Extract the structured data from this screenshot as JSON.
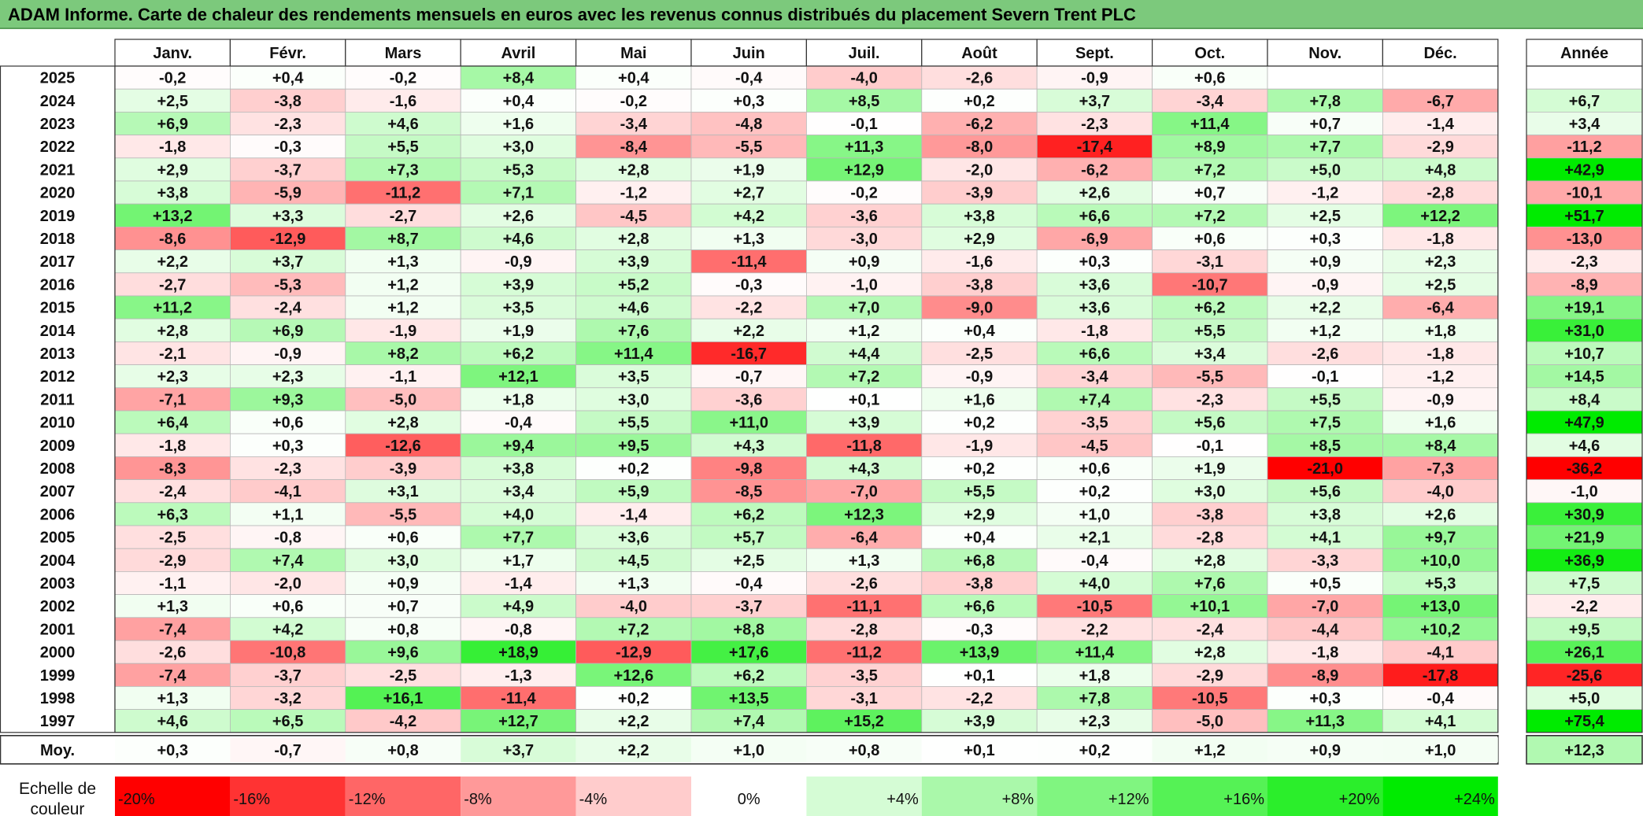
{
  "title": "ADAM Informe. Carte de chaleur des rendements mensuels en euros avec les revenus connus distribués du placement Severn Trent PLC",
  "colors": {
    "title_bg": "#7cc97c",
    "negative": "#ff0000",
    "neutral": "#ffffff",
    "positive": "#00ee00"
  },
  "chart_data": {
    "type": "heatmap",
    "months": [
      "Janv.",
      "Févr.",
      "Mars",
      "Avril",
      "Mai",
      "Juin",
      "Juil.",
      "Août",
      "Sept.",
      "Oct.",
      "Nov.",
      "Déc."
    ],
    "year_header": "Année",
    "rows": [
      {
        "year": "2025",
        "values": [
          "-0,2",
          "+0,4",
          "-0,2",
          "+8,4",
          "+0,4",
          "-0,4",
          "-4,0",
          "-2,6",
          "-0,9",
          "+0,6",
          "",
          ""
        ],
        "annual": ""
      },
      {
        "year": "2024",
        "values": [
          "+2,5",
          "-3,8",
          "-1,6",
          "+0,4",
          "-0,2",
          "+0,3",
          "+8,5",
          "+0,2",
          "+3,7",
          "-3,4",
          "+7,8",
          "-6,7"
        ],
        "annual": "+6,7"
      },
      {
        "year": "2023",
        "values": [
          "+6,9",
          "-2,3",
          "+4,6",
          "+1,6",
          "-3,4",
          "-4,8",
          "-0,1",
          "-6,2",
          "-2,3",
          "+11,4",
          "+0,7",
          "-1,4"
        ],
        "annual": "+3,4"
      },
      {
        "year": "2022",
        "values": [
          "-1,8",
          "-0,3",
          "+5,5",
          "+3,0",
          "-8,4",
          "-5,5",
          "+11,3",
          "-8,0",
          "-17,4",
          "+8,9",
          "+7,7",
          "-2,9"
        ],
        "annual": "-11,2"
      },
      {
        "year": "2021",
        "values": [
          "+2,9",
          "-3,7",
          "+7,3",
          "+5,3",
          "+2,8",
          "+1,9",
          "+12,9",
          "-2,0",
          "-6,2",
          "+7,2",
          "+5,0",
          "+4,8"
        ],
        "annual": "+42,9"
      },
      {
        "year": "2020",
        "values": [
          "+3,8",
          "-5,9",
          "-11,2",
          "+7,1",
          "-1,2",
          "+2,7",
          "-0,2",
          "-3,9",
          "+2,6",
          "+0,7",
          "-1,2",
          "-2,8"
        ],
        "annual": "-10,1"
      },
      {
        "year": "2019",
        "values": [
          "+13,2",
          "+3,3",
          "-2,7",
          "+2,6",
          "-4,5",
          "+4,2",
          "-3,6",
          "+3,8",
          "+6,6",
          "+7,2",
          "+2,5",
          "+12,2"
        ],
        "annual": "+51,7"
      },
      {
        "year": "2018",
        "values": [
          "-8,6",
          "-12,9",
          "+8,7",
          "+4,6",
          "+2,8",
          "+1,3",
          "-3,0",
          "+2,9",
          "-6,9",
          "+0,6",
          "+0,3",
          "-1,8"
        ],
        "annual": "-13,0"
      },
      {
        "year": "2017",
        "values": [
          "+2,2",
          "+3,7",
          "+1,3",
          "-0,9",
          "+3,9",
          "-11,4",
          "+0,9",
          "-1,6",
          "+0,3",
          "-3,1",
          "+0,9",
          "+2,3"
        ],
        "annual": "-2,3"
      },
      {
        "year": "2016",
        "values": [
          "-2,7",
          "-5,3",
          "+1,2",
          "+3,9",
          "+5,2",
          "-0,3",
          "-1,0",
          "-3,8",
          "+3,6",
          "-10,7",
          "-0,9",
          "+2,5"
        ],
        "annual": "-8,9"
      },
      {
        "year": "2015",
        "values": [
          "+11,2",
          "-2,4",
          "+1,2",
          "+3,5",
          "+4,6",
          "-2,2",
          "+7,0",
          "-9,0",
          "+3,6",
          "+6,2",
          "+2,2",
          "-6,4"
        ],
        "annual": "+19,1"
      },
      {
        "year": "2014",
        "values": [
          "+2,8",
          "+6,9",
          "-1,9",
          "+1,9",
          "+7,6",
          "+2,2",
          "+1,2",
          "+0,4",
          "-1,8",
          "+5,5",
          "+1,2",
          "+1,8"
        ],
        "annual": "+31,0"
      },
      {
        "year": "2013",
        "values": [
          "-2,1",
          "-0,9",
          "+8,2",
          "+6,2",
          "+11,4",
          "-16,7",
          "+4,4",
          "-2,5",
          "+6,6",
          "+3,4",
          "-2,6",
          "-1,8"
        ],
        "annual": "+10,7"
      },
      {
        "year": "2012",
        "values": [
          "+2,3",
          "+2,3",
          "-1,1",
          "+12,1",
          "+3,5",
          "-0,7",
          "+7,2",
          "-0,9",
          "-3,4",
          "-5,5",
          "-0,1",
          "-1,2"
        ],
        "annual": "+14,5"
      },
      {
        "year": "2011",
        "values": [
          "-7,1",
          "+9,3",
          "-5,0",
          "+1,8",
          "+3,0",
          "-3,6",
          "+0,1",
          "+1,6",
          "+7,4",
          "-2,3",
          "+5,5",
          "-0,9"
        ],
        "annual": "+8,4"
      },
      {
        "year": "2010",
        "values": [
          "+6,4",
          "+0,6",
          "+2,8",
          "-0,4",
          "+5,5",
          "+11,0",
          "+3,9",
          "+0,2",
          "-3,5",
          "+5,6",
          "+7,5",
          "+1,6"
        ],
        "annual": "+47,9"
      },
      {
        "year": "2009",
        "values": [
          "-1,8",
          "+0,3",
          "-12,6",
          "+9,4",
          "+9,5",
          "+4,3",
          "-11,8",
          "-1,9",
          "-4,5",
          "-0,1",
          "+8,5",
          "+8,4"
        ],
        "annual": "+4,6"
      },
      {
        "year": "2008",
        "values": [
          "-8,3",
          "-2,3",
          "-3,9",
          "+3,8",
          "+0,2",
          "-9,8",
          "+4,3",
          "+0,2",
          "+0,6",
          "+1,9",
          "-21,0",
          "-7,3"
        ],
        "annual": "-36,2"
      },
      {
        "year": "2007",
        "values": [
          "-2,4",
          "-4,1",
          "+3,1",
          "+3,4",
          "+5,9",
          "-8,5",
          "-7,0",
          "+5,5",
          "+0,2",
          "+3,0",
          "+5,6",
          "-4,0"
        ],
        "annual": "-1,0"
      },
      {
        "year": "2006",
        "values": [
          "+6,3",
          "+1,1",
          "-5,5",
          "+4,0",
          "-1,4",
          "+6,2",
          "+12,3",
          "+2,9",
          "+1,0",
          "-3,8",
          "+3,8",
          "+2,6"
        ],
        "annual": "+30,9"
      },
      {
        "year": "2005",
        "values": [
          "-2,5",
          "-0,8",
          "+0,6",
          "+7,7",
          "+3,6",
          "+5,7",
          "-6,4",
          "+0,4",
          "+2,1",
          "-2,8",
          "+4,1",
          "+9,7"
        ],
        "annual": "+21,9"
      },
      {
        "year": "2004",
        "values": [
          "-2,9",
          "+7,4",
          "+3,0",
          "+1,7",
          "+4,5",
          "+2,5",
          "+1,3",
          "+6,8",
          "-0,4",
          "+2,8",
          "-3,3",
          "+10,0"
        ],
        "annual": "+36,9"
      },
      {
        "year": "2003",
        "values": [
          "-1,1",
          "-2,0",
          "+0,9",
          "-1,4",
          "+1,3",
          "-0,4",
          "-2,6",
          "-3,8",
          "+4,0",
          "+7,6",
          "+0,5",
          "+5,3"
        ],
        "annual": "+7,5"
      },
      {
        "year": "2002",
        "values": [
          "+1,3",
          "+0,6",
          "+0,7",
          "+4,9",
          "-4,0",
          "-3,7",
          "-11,1",
          "+6,6",
          "-10,5",
          "+10,1",
          "-7,0",
          "+13,0"
        ],
        "annual": "-2,2"
      },
      {
        "year": "2001",
        "values": [
          "-7,4",
          "+4,2",
          "+0,8",
          "-0,8",
          "+7,2",
          "+8,8",
          "-2,8",
          "-0,3",
          "-2,2",
          "-2,4",
          "-4,4",
          "+10,2"
        ],
        "annual": "+9,5"
      },
      {
        "year": "2000",
        "values": [
          "-2,6",
          "-10,8",
          "+9,6",
          "+18,9",
          "-12,9",
          "+17,6",
          "-11,2",
          "+13,9",
          "+11,4",
          "+2,8",
          "-1,8",
          "-4,1"
        ],
        "annual": "+26,1"
      },
      {
        "year": "1999",
        "values": [
          "-7,4",
          "-3,7",
          "-2,5",
          "-1,3",
          "+12,6",
          "+6,2",
          "-3,5",
          "+0,1",
          "+1,8",
          "-2,9",
          "-8,9",
          "-17,8"
        ],
        "annual": "-25,6"
      },
      {
        "year": "1998",
        "values": [
          "+1,3",
          "-3,2",
          "+16,1",
          "-11,4",
          "+0,2",
          "+13,5",
          "-3,1",
          "-2,2",
          "+7,8",
          "-10,5",
          "+0,3",
          "-0,4"
        ],
        "annual": "+5,0"
      },
      {
        "year": "1997",
        "values": [
          "+4,6",
          "+6,5",
          "-4,2",
          "+12,7",
          "+2,2",
          "+7,4",
          "+15,2",
          "+3,9",
          "+2,3",
          "-5,0",
          "+11,3",
          "+4,1"
        ],
        "annual": "+75,4"
      }
    ],
    "average": {
      "label": "Moy.",
      "values": [
        "+0,3",
        "-0,7",
        "+0,8",
        "+3,7",
        "+2,2",
        "+1,0",
        "+0,8",
        "+0,1",
        "+0,2",
        "+1,2",
        "+0,9",
        "+1,0"
      ],
      "annual": "+12,3"
    },
    "scale": {
      "label_line1": "Echelle de",
      "label_line2": "couleur",
      "stops": [
        "-20%",
        "-16%",
        "-12%",
        "-8%",
        "-4%",
        "0%",
        "+4%",
        "+8%",
        "+12%",
        "+16%",
        "+20%",
        "+24%"
      ]
    }
  }
}
